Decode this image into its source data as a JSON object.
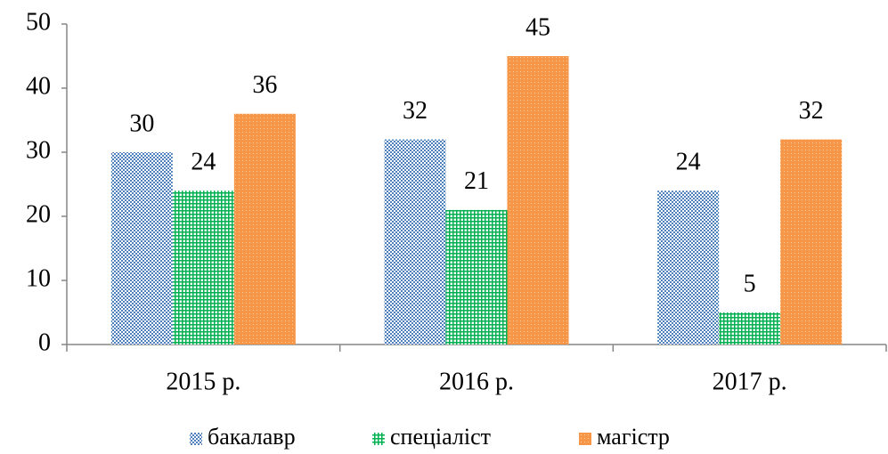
{
  "chart_data": {
    "type": "bar",
    "categories": [
      "2015 р.",
      "2016 р.",
      "2017 р."
    ],
    "series": [
      {
        "name": "бакалавр",
        "color": "#4f81bd",
        "values": [
          30,
          32,
          24
        ]
      },
      {
        "name": "спеціаліст",
        "color": "#00b050",
        "values": [
          24,
          21,
          5
        ]
      },
      {
        "name": "магістр",
        "color": "#f79646",
        "values": [
          36,
          45,
          32
        ]
      }
    ],
    "ylim": [
      0,
      50
    ],
    "yticks": [
      0,
      10,
      20,
      30,
      40,
      50
    ],
    "grid": false,
    "legend": "bottom"
  }
}
